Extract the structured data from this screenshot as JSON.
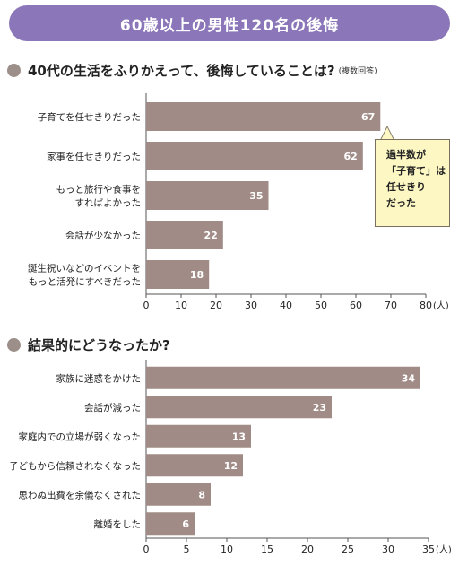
{
  "banner": {
    "title": "60歳以上の男性120名の後悔"
  },
  "colors": {
    "banner": "#8a76b8",
    "bar": "#a08b86",
    "bullet": "#9c8f8a",
    "callout_bg": "#fdf7c4"
  },
  "chart_data": [
    {
      "type": "bar",
      "orientation": "horizontal",
      "title": "40代の生活をふりかえって、後悔していることは?",
      "note": "(複数回答)",
      "categories": [
        [
          "子育てを任せきりだった"
        ],
        [
          "家事を任せきりだった"
        ],
        [
          "もっと旅行や食事を",
          "すればよかった"
        ],
        [
          "会話が少なかった"
        ],
        [
          "誕生祝いなどのイベントを",
          "もっと活発にすべきだった"
        ]
      ],
      "values": [
        67,
        62,
        35,
        22,
        18
      ],
      "xlim": [
        0,
        80
      ],
      "ticks": [
        0,
        10,
        20,
        30,
        40,
        50,
        60,
        70,
        80
      ],
      "unit": "(人)",
      "grid": false
    },
    {
      "type": "bar",
      "orientation": "horizontal",
      "title": "結果的にどうなったか?",
      "note": "",
      "categories": [
        [
          "家族に迷惑をかけた"
        ],
        [
          "会話が減った"
        ],
        [
          "家庭内での立場が弱くなった"
        ],
        [
          "子どもから信頼されなくなった"
        ],
        [
          "思わぬ出費を余儀なくされた"
        ],
        [
          "離婚をした"
        ]
      ],
      "values": [
        34,
        23,
        13,
        12,
        8,
        6
      ],
      "xlim": [
        0,
        35
      ],
      "ticks": [
        0,
        5,
        10,
        15,
        20,
        25,
        30,
        35
      ],
      "unit": "(人)",
      "grid": false
    }
  ],
  "callout": {
    "lines": [
      "過半数が",
      "「子育て」は",
      "任せきり",
      "だった"
    ]
  }
}
